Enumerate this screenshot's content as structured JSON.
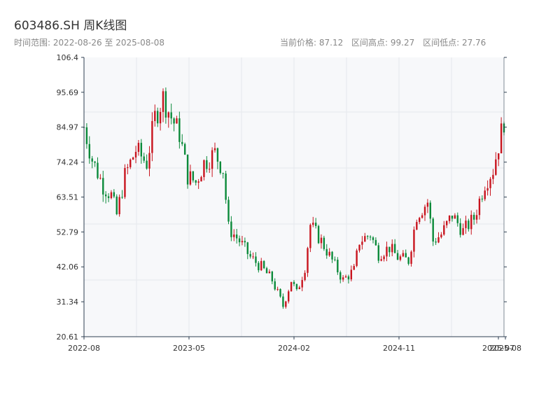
{
  "header": {
    "title": "603486.SH 周K线图",
    "range_label": "时间范围: 2022-08-26 至 2025-08-08",
    "current_price_label": "当前价格: 87.12",
    "high_label": "区间高点: 99.27",
    "low_label": "区间低点: 27.76"
  },
  "colors": {
    "up": "#c8141e",
    "down": "#0b8a3a",
    "plot_bg": "#f7f8fa",
    "grid": "#e6e8ec",
    "axis": "#2c3e50"
  },
  "chart_data": {
    "type": "candlestick",
    "ticker": "603486.SH",
    "x_ticks": [
      "2022-08",
      "2023-05",
      "2024-02",
      "2024-11",
      "2025-07",
      "2025-08"
    ],
    "y_ticks": [
      "106.4",
      "95.69",
      "84.97",
      "74.24",
      "63.51",
      "52.79",
      "42.06",
      "31.34",
      "20.61"
    ],
    "ylim": [
      20.61,
      106.4
    ],
    "current_price": 87.12,
    "period_high": 99.27,
    "period_low": 27.76,
    "anchors": [
      [
        "2022-08-26",
        85
      ],
      [
        "2022-09-16",
        75
      ],
      [
        "2022-10-14",
        67
      ],
      [
        "2022-11-04",
        64
      ],
      [
        "2022-11-18",
        58
      ],
      [
        "2022-12-09",
        70
      ],
      [
        "2023-01-06",
        78
      ],
      [
        "2023-02-03",
        74
      ],
      [
        "2023-02-24",
        88
      ],
      [
        "2023-03-17",
        94
      ],
      [
        "2023-04-07",
        88
      ],
      [
        "2023-04-28",
        83
      ],
      [
        "2023-05-19",
        70
      ],
      [
        "2023-06-09",
        68
      ],
      [
        "2023-06-30",
        74
      ],
      [
        "2023-07-28",
        77
      ],
      [
        "2023-08-18",
        72
      ],
      [
        "2023-09-01",
        54
      ],
      [
        "2023-09-29",
        50
      ],
      [
        "2023-10-27",
        45
      ],
      [
        "2023-11-24",
        42
      ],
      [
        "2023-12-22",
        38
      ],
      [
        "2024-01-19",
        30
      ],
      [
        "2024-02-09",
        38
      ],
      [
        "2024-02-23",
        34
      ],
      [
        "2024-03-15",
        42
      ],
      [
        "2024-03-29",
        55
      ],
      [
        "2024-04-26",
        50
      ],
      [
        "2024-05-24",
        44
      ],
      [
        "2024-06-21",
        38
      ],
      [
        "2024-07-19",
        41
      ],
      [
        "2024-08-02",
        50
      ],
      [
        "2024-08-30",
        52
      ],
      [
        "2024-09-20",
        46
      ],
      [
        "2024-10-18",
        48
      ],
      [
        "2024-11-08",
        45
      ],
      [
        "2024-12-06",
        44
      ],
      [
        "2024-12-27",
        58
      ],
      [
        "2025-01-24",
        62
      ],
      [
        "2025-02-07",
        50
      ],
      [
        "2025-02-28",
        52
      ],
      [
        "2025-03-28",
        58
      ],
      [
        "2025-04-25",
        53
      ],
      [
        "2025-05-23",
        57
      ],
      [
        "2025-06-20",
        68
      ],
      [
        "2025-07-11",
        72
      ],
      [
        "2025-08-08",
        87.12
      ]
    ]
  }
}
